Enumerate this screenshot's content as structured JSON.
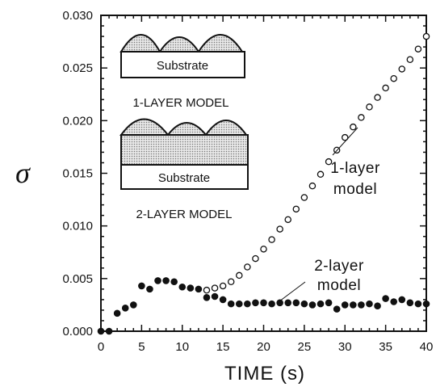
{
  "chart_data": {
    "type": "scatter",
    "title": "",
    "xlabel": "TIME (s)",
    "ylabel": "σ",
    "xlim": [
      0,
      40
    ],
    "ylim": [
      0,
      0.03
    ],
    "xticks": [
      0,
      5,
      10,
      15,
      20,
      25,
      30,
      35,
      40
    ],
    "xtick_labels": [
      "0",
      "5",
      "10",
      "15",
      "20",
      "25",
      "30",
      "35",
      "40"
    ],
    "yticks": [
      0.0,
      0.005,
      0.01,
      0.015,
      0.02,
      0.025,
      0.03
    ],
    "ytick_labels": [
      "0.000",
      "0.005",
      "0.010",
      "0.015",
      "0.020",
      "0.025",
      "0.030"
    ],
    "grid": false,
    "series": [
      {
        "name": "1-layer model",
        "marker": "open-circle",
        "x": [
          13,
          14,
          15,
          16,
          17,
          18,
          19,
          20,
          21,
          22,
          23,
          24,
          25,
          26,
          27,
          28,
          29,
          30,
          31,
          32,
          33,
          34,
          35,
          36,
          37,
          38,
          39,
          40
        ],
        "y": [
          0.0039,
          0.0041,
          0.0043,
          0.0047,
          0.0053,
          0.0061,
          0.0069,
          0.0078,
          0.0087,
          0.0097,
          0.0106,
          0.0116,
          0.0127,
          0.0138,
          0.0149,
          0.0161,
          0.0172,
          0.0184,
          0.0194,
          0.0203,
          0.0213,
          0.0222,
          0.0231,
          0.024,
          0.0249,
          0.0258,
          0.0268,
          0.028
        ]
      },
      {
        "name": "2-layer model",
        "marker": "filled-circle",
        "x": [
          0,
          1,
          2,
          3,
          4,
          5,
          6,
          7,
          8,
          9,
          10,
          11,
          12,
          13,
          14,
          15,
          16,
          17,
          18,
          19,
          20,
          21,
          22,
          23,
          24,
          25,
          26,
          27,
          28,
          29,
          30,
          31,
          32,
          33,
          34,
          35,
          36,
          37,
          38,
          39,
          40
        ],
        "y": [
          0.0,
          0.0,
          0.0017,
          0.0022,
          0.0025,
          0.0043,
          0.004,
          0.0048,
          0.0048,
          0.0047,
          0.0042,
          0.0041,
          0.004,
          0.0032,
          0.0033,
          0.003,
          0.0026,
          0.0026,
          0.0026,
          0.0027,
          0.0027,
          0.0026,
          0.0027,
          0.0027,
          0.0027,
          0.0026,
          0.0025,
          0.0026,
          0.0027,
          0.0021,
          0.0025,
          0.0025,
          0.0025,
          0.0026,
          0.0024,
          0.0031,
          0.0028,
          0.003,
          0.0027,
          0.0026,
          0.0026
        ]
      }
    ],
    "annotations": [
      {
        "lines": [
          "1-layer",
          "model"
        ],
        "target_series": "1-layer model"
      },
      {
        "lines": [
          "2-layer",
          "model"
        ],
        "target_series": "2-layer model"
      }
    ],
    "inset": {
      "one_layer": {
        "substrate_label": "Substrate",
        "caption": "1-LAYER MODEL"
      },
      "two_layer": {
        "substrate_label": "Substrate",
        "caption": "2-LAYER MODEL"
      }
    }
  }
}
